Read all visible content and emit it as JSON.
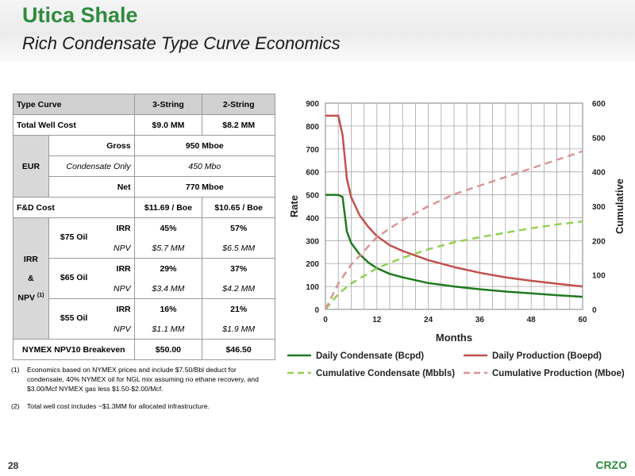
{
  "title": "Utica Shale",
  "subtitle": "Rich Condensate Type Curve Economics",
  "table": {
    "header": {
      "col0": "Type Curve",
      "col1": "3-String",
      "col2": "2-String"
    },
    "total_well_cost": {
      "label": "Total Well Cost",
      "v1": "$9.0 MM",
      "v2": "$8.2 MM"
    },
    "eur": {
      "label": "EUR",
      "gross_label": "Gross",
      "gross_value": "950 Mboe",
      "condensate_label": "Condensate Only",
      "condensate_value": "450 Mbo",
      "net_label": "Net",
      "net_value": "770 Mboe"
    },
    "fd_cost": {
      "label": "F&D Cost",
      "v1": "$11.69 / Boe",
      "v2": "$10.65 / Boe"
    },
    "irr_npv": {
      "label_line1": "IRR",
      "label_line2": "&",
      "label_line3": "NPV",
      "label_sup": "(1)",
      "scenarios": [
        {
          "oil": "$75 Oil",
          "irr_label": "IRR",
          "irr1": "45%",
          "irr2": "57%",
          "npv_label": "NPV",
          "npv1": "$5.7 MM",
          "npv2": "$6.5 MM"
        },
        {
          "oil": "$65 Oil",
          "irr_label": "IRR",
          "irr1": "29%",
          "irr2": "37%",
          "npv_label": "NPV",
          "npv1": "$3.4 MM",
          "npv2": "$4.2 MM"
        },
        {
          "oil": "$55 Oil",
          "irr_label": "IRR",
          "irr1": "16%",
          "irr2": "21%",
          "npv_label": "NPV",
          "npv1": "$1.1 MM",
          "npv2": "$1.9 MM"
        }
      ]
    },
    "breakeven": {
      "label": "NYMEX NPV10 Breakeven",
      "v1": "$50.00",
      "v2": "$46.50"
    }
  },
  "footnotes": [
    {
      "num": "(1)",
      "text": "Economics based on NYMEX prices and include $7.50/Bbl deduct for condensate, 40% NYMEX oil for NGL mix assuming no ethane recovery, and $3.00/Mcf NYMEX gas less $1.50-$2.00/Mcf."
    },
    {
      "num": "(2)",
      "text": "Total well cost includes ~$1.3MM for allocated infrastructure."
    }
  ],
  "page_number": "28",
  "ticker": "CRZO",
  "chart_data": {
    "type": "line",
    "xlabel": "Months",
    "ylabel_left": "Rate",
    "ylabel_right": "Cumulative",
    "xlim": [
      0,
      60
    ],
    "ylim_left": [
      0,
      900
    ],
    "ylim_right": [
      0,
      600
    ],
    "xticks": [
      0,
      12,
      24,
      36,
      48,
      60
    ],
    "yticks_left": [
      0,
      100,
      200,
      300,
      400,
      500,
      600,
      700,
      800,
      900
    ],
    "yticks_right": [
      0,
      100,
      200,
      300,
      400,
      500,
      600
    ],
    "grid": true,
    "legend_position": "bottom",
    "series": [
      {
        "name": "Daily Condensate (Bcpd)",
        "axis": "left",
        "style": "solid",
        "color": "#1e7a1e",
        "x": [
          0,
          1,
          3,
          4,
          5,
          6,
          8,
          10,
          12,
          15,
          18,
          24,
          30,
          36,
          42,
          48,
          54,
          60
        ],
        "y": [
          500,
          500,
          500,
          490,
          340,
          290,
          240,
          205,
          180,
          155,
          140,
          115,
          100,
          88,
          78,
          70,
          62,
          55
        ]
      },
      {
        "name": "Daily Production (Boepd)",
        "axis": "left",
        "style": "solid",
        "color": "#c0504d",
        "x": [
          0,
          1,
          3,
          4,
          5,
          6,
          8,
          10,
          12,
          15,
          18,
          24,
          30,
          36,
          42,
          48,
          54,
          60
        ],
        "y": [
          845,
          845,
          845,
          760,
          570,
          490,
          410,
          360,
          320,
          280,
          255,
          215,
          185,
          160,
          140,
          125,
          112,
          100
        ]
      },
      {
        "name": "Cumulative Condensate (Mbbls)",
        "axis": "right",
        "style": "dashed",
        "color": "#92d050",
        "x": [
          0,
          3,
          6,
          12,
          18,
          24,
          30,
          36,
          42,
          48,
          54,
          60
        ],
        "y": [
          0,
          45,
          75,
          120,
          150,
          175,
          195,
          210,
          223,
          236,
          247,
          256
        ]
      },
      {
        "name": "Cumulative Production (Mboe)",
        "axis": "right",
        "style": "dashed",
        "color": "#d99594",
        "x": [
          0,
          3,
          6,
          12,
          18,
          24,
          30,
          36,
          42,
          48,
          54,
          60
        ],
        "y": [
          0,
          75,
          130,
          210,
          260,
          300,
          335,
          360,
          385,
          410,
          435,
          460
        ]
      }
    ]
  }
}
